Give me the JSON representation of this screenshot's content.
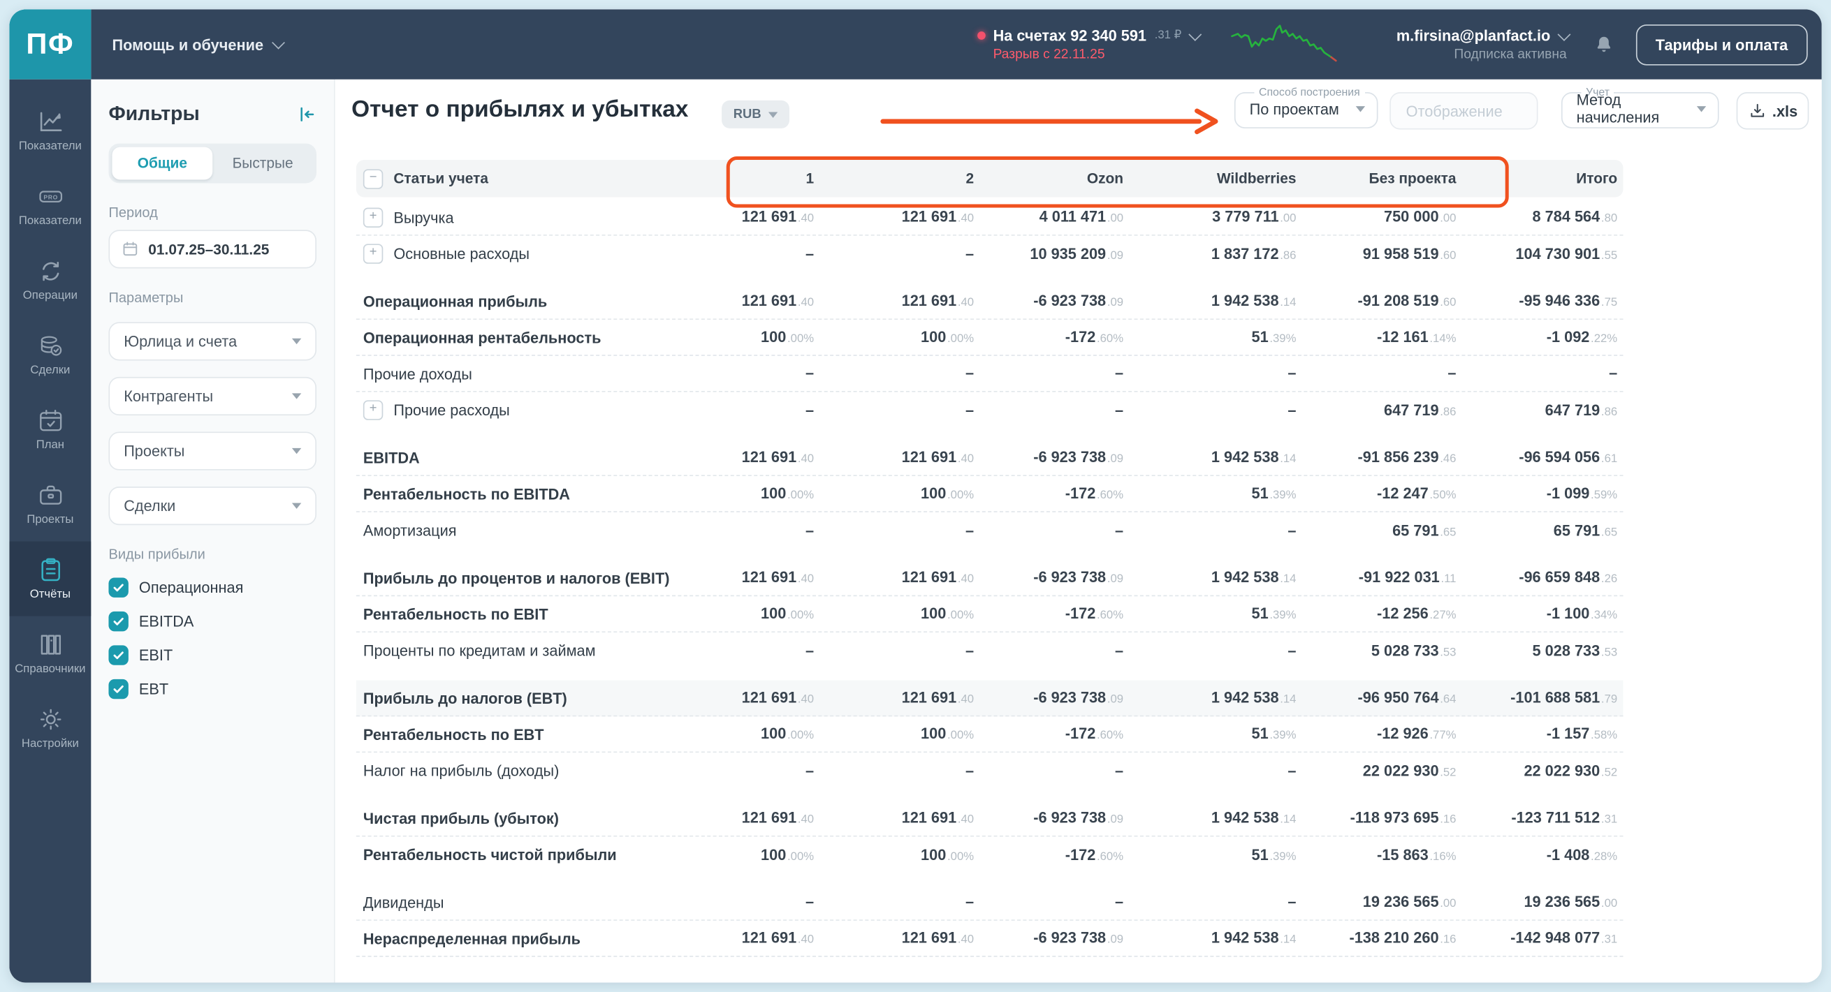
{
  "colors": {
    "accent_teal": "#1e96aa",
    "topbar_navy": "#33455c",
    "annotation_orange": "#f0511f",
    "alert_red": "#ff5b6c",
    "sparkline_green": "#26b33e",
    "sparkline_tail_red": "#c94f43"
  },
  "icons": {
    "expand": "+",
    "collapse_rows": "−"
  },
  "app": {
    "logo_text": "ПФ"
  },
  "topbar": {
    "help_menu": "Помощь и обучение",
    "accounts": {
      "label": "На счетах",
      "value": "92 340 591",
      "decimals": ".31 ₽"
    },
    "cash_gap": "Разрыв с 22.11.25",
    "user_email": "m.firsina@planfact.io",
    "subscription_status": "Подписка активна",
    "tariffs_button": "Тарифы и оплата"
  },
  "sidebar": {
    "items": [
      {
        "key": "pokazateli",
        "label": "Показатели",
        "icon": "chart-line"
      },
      {
        "key": "pokazateli-pro",
        "label": "Показатели",
        "icon": "pro-badge"
      },
      {
        "key": "operacii",
        "label": "Операции",
        "icon": "sync-arrows"
      },
      {
        "key": "sdelki",
        "label": "Сделки",
        "icon": "coins"
      },
      {
        "key": "plan",
        "label": "План",
        "icon": "calendar-check"
      },
      {
        "key": "proekty",
        "label": "Проекты",
        "icon": "briefcase"
      },
      {
        "key": "otchety",
        "label": "Отчёты",
        "icon": "clipboard",
        "active": true
      },
      {
        "key": "spravochniki",
        "label": "Справочники",
        "icon": "books"
      },
      {
        "key": "nastroyki",
        "label": "Настройки",
        "icon": "gear"
      }
    ]
  },
  "filters": {
    "title": "Фильтры",
    "tab_general": "Общие",
    "tab_quick": "Быстрые",
    "period_label": "Период",
    "period_value": "01.07.25–30.11.25",
    "parameters_label": "Параметры",
    "selects": [
      {
        "key": "entities",
        "placeholder": "Юрлица и счета"
      },
      {
        "key": "counterparties",
        "placeholder": "Контрагенты"
      },
      {
        "key": "projects",
        "placeholder": "Проекты"
      },
      {
        "key": "deals",
        "placeholder": "Сделки"
      }
    ],
    "profit_types_label": "Виды прибыли",
    "profit_types": [
      {
        "label": "Операционная",
        "checked": true
      },
      {
        "label": "EBITDA",
        "checked": true
      },
      {
        "label": "EBIT",
        "checked": true
      },
      {
        "label": "EBT",
        "checked": true
      }
    ]
  },
  "report": {
    "title": "Отчет о прибылях и убытках",
    "currency": "RUB",
    "build_method_label": "Способ построения",
    "build_method_value": "По проектам",
    "display_placeholder": "Отображение",
    "accounting_label": "Учет",
    "accounting_value": "Метод начисления",
    "export_xls": ".xls"
  },
  "table": {
    "row_header": "Статьи учета",
    "columns": [
      "1",
      "2",
      "Ozon",
      "Wildberries",
      "Без проекта",
      "Итого"
    ],
    "sections": [
      {
        "rows": [
          {
            "name": "Выручка",
            "expand": true,
            "bold": false,
            "values": [
              "121 691.40",
              "121 691.40",
              "4 011 471.00",
              "3 779 711.00",
              "750 000.00",
              "8 784 564.80"
            ]
          },
          {
            "name": "Основные расходы",
            "expand": true,
            "bold": false,
            "values": [
              "–",
              "–",
              "10 935 209.09",
              "1 837 172.86",
              "91 958 519.60",
              "104 730 901.55"
            ]
          }
        ]
      },
      {
        "rows": [
          {
            "name": "Операционная прибыль",
            "bold": true,
            "values": [
              "121 691.40",
              "121 691.40",
              "-6 923 738.09",
              "1 942 538.14",
              "-91 208 519.60",
              "-95 946 336.75"
            ]
          },
          {
            "name": "Операционная рентабельность",
            "bold": true,
            "values": [
              "100.00%",
              "100.00%",
              "-172.60%",
              "51.39%",
              "-12 161.14%",
              "-1 092.22%"
            ]
          },
          {
            "name": "Прочие доходы",
            "bold": false,
            "values": [
              "–",
              "–",
              "–",
              "–",
              "–",
              "–"
            ]
          },
          {
            "name": "Прочие расходы",
            "expand": true,
            "bold": false,
            "values": [
              "–",
              "–",
              "–",
              "–",
              "647 719.86",
              "647 719.86"
            ]
          }
        ]
      },
      {
        "rows": [
          {
            "name": "EBITDA",
            "bold": true,
            "values": [
              "121 691.40",
              "121 691.40",
              "-6 923 738.09",
              "1 942 538.14",
              "-91 856 239.46",
              "-96 594 056.61"
            ]
          },
          {
            "name": "Рентабельность по EBITDA",
            "bold": true,
            "values": [
              "100.00%",
              "100.00%",
              "-172.60%",
              "51.39%",
              "-12 247.50%",
              "-1 099.59%"
            ]
          },
          {
            "name": "Амортизация",
            "bold": false,
            "values": [
              "–",
              "–",
              "–",
              "–",
              "65 791.65",
              "65 791.65"
            ]
          }
        ]
      },
      {
        "rows": [
          {
            "name": "Прибыль до процентов и налогов (EBIT)",
            "bold": true,
            "values": [
              "121 691.40",
              "121 691.40",
              "-6 923 738.09",
              "1 942 538.14",
              "-91 922 031.11",
              "-96 659 848.26"
            ]
          },
          {
            "name": "Рентабельность по EBIT",
            "bold": true,
            "values": [
              "100.00%",
              "100.00%",
              "-172.60%",
              "51.39%",
              "-12 256.27%",
              "-1 100.34%"
            ]
          },
          {
            "name": "Проценты по кредитам и займам",
            "bold": false,
            "values": [
              "–",
              "–",
              "–",
              "–",
              "5 028 733.53",
              "5 028 733.53"
            ]
          }
        ]
      },
      {
        "rows": [
          {
            "name": "Прибыль до налогов (EBT)",
            "bold": true,
            "highlight": true,
            "values": [
              "121 691.40",
              "121 691.40",
              "-6 923 738.09",
              "1 942 538.14",
              "-96 950 764.64",
              "-101 688 581.79"
            ]
          },
          {
            "name": "Рентабельность по EBT",
            "bold": true,
            "values": [
              "100.00%",
              "100.00%",
              "-172.60%",
              "51.39%",
              "-12 926.77%",
              "-1 157.58%"
            ]
          },
          {
            "name": "Налог на прибыль (доходы)",
            "bold": false,
            "values": [
              "–",
              "–",
              "–",
              "–",
              "22 022 930.52",
              "22 022 930.52"
            ]
          }
        ]
      },
      {
        "rows": [
          {
            "name": "Чистая прибыль (убыток)",
            "bold": true,
            "values": [
              "121 691.40",
              "121 691.40",
              "-6 923 738.09",
              "1 942 538.14",
              "-118 973 695.16",
              "-123 711 512.31"
            ]
          },
          {
            "name": "Рентабельность чистой прибыли",
            "bold": true,
            "values": [
              "100.00%",
              "100.00%",
              "-172.60%",
              "51.39%",
              "-15 863.16%",
              "-1 408.28%"
            ]
          }
        ]
      },
      {
        "rows": [
          {
            "name": "Дивиденды",
            "bold": false,
            "values": [
              "–",
              "–",
              "–",
              "–",
              "19 236 565.00",
              "19 236 565.00"
            ]
          },
          {
            "name": "Нераспределенная прибыль",
            "bold": true,
            "values": [
              "121 691.40",
              "121 691.40",
              "-6 923 738.09",
              "1 942 538.14",
              "-138 210 260.16",
              "-142 948 077.31"
            ]
          }
        ]
      }
    ]
  }
}
